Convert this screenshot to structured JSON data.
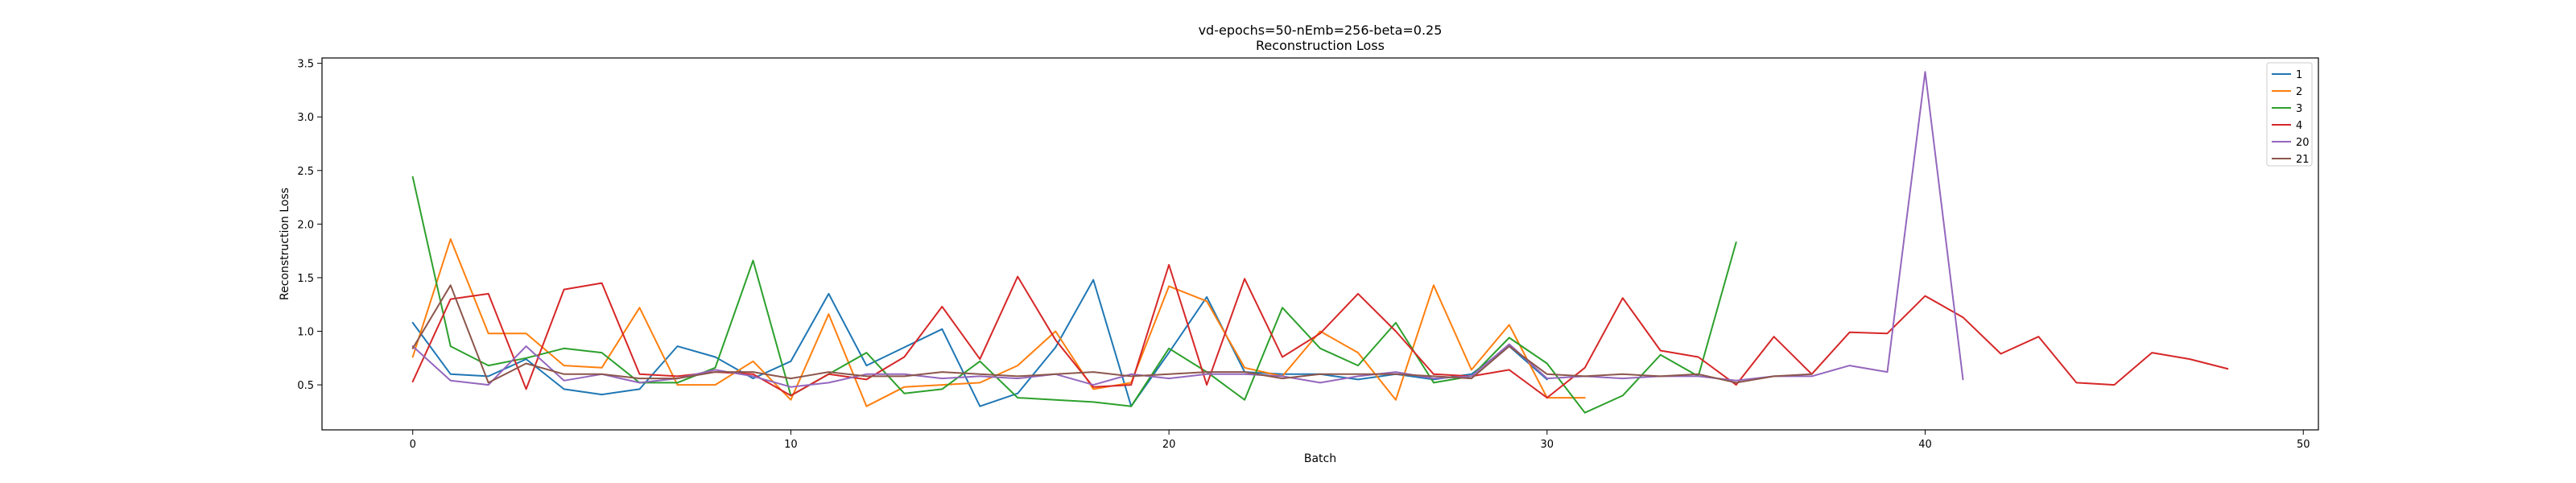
{
  "chart_data": {
    "type": "line",
    "title": "vd-epochs=50-nEmb=256-beta=0.25",
    "subtitle": "Reconstruction Loss",
    "xlabel": "Batch",
    "ylabel": "Reconstruction Loss",
    "xlim": [
      -2.4,
      50.4
    ],
    "ylim": [
      0.08,
      3.55
    ],
    "xticks": [
      0,
      10,
      20,
      30,
      40,
      50
    ],
    "yticks": [
      0.5,
      1.0,
      1.5,
      2.0,
      2.5,
      3.0,
      3.5
    ],
    "ytick_labels": [
      "0.5",
      "1.0",
      "1.5",
      "2.0",
      "2.5",
      "3.0",
      "3.5"
    ],
    "grid": false,
    "legend_position": "top-right",
    "series": [
      {
        "name": "1",
        "color": "#1f77b4",
        "x": [
          0,
          1,
          2,
          3,
          4,
          5,
          6,
          7,
          8,
          9,
          10,
          11,
          12,
          13,
          14,
          15,
          16,
          17,
          18,
          19,
          20,
          21,
          22,
          23,
          24,
          25,
          26,
          27,
          28,
          29,
          30
        ],
        "values": [
          1.08,
          0.6,
          0.58,
          0.74,
          0.46,
          0.41,
          0.46,
          0.86,
          0.76,
          0.56,
          0.72,
          1.35,
          0.68,
          0.85,
          1.02,
          0.3,
          0.42,
          0.85,
          1.48,
          0.3,
          0.8,
          1.32,
          0.62,
          0.6,
          0.6,
          0.55,
          0.6,
          0.55,
          0.6,
          0.86,
          0.55
        ]
      },
      {
        "name": "2",
        "color": "#ff7f0e",
        "x": [
          0,
          1,
          2,
          3,
          4,
          5,
          6,
          7,
          8,
          9,
          10,
          11,
          12,
          13,
          14,
          15,
          16,
          17,
          18,
          19,
          20,
          21,
          22,
          23,
          24,
          25,
          26,
          27,
          28,
          29,
          30,
          31
        ],
        "values": [
          0.76,
          1.86,
          0.98,
          0.98,
          0.68,
          0.66,
          1.22,
          0.5,
          0.5,
          0.72,
          0.36,
          1.16,
          0.3,
          0.48,
          0.5,
          0.52,
          0.68,
          1.0,
          0.46,
          0.52,
          1.42,
          1.28,
          0.66,
          0.58,
          1.0,
          0.8,
          0.36,
          1.43,
          0.64,
          1.06,
          0.38,
          0.38
        ]
      },
      {
        "name": "3",
        "color": "#2ca02c",
        "x": [
          0,
          1,
          2,
          3,
          4,
          5,
          6,
          7,
          8,
          9,
          10,
          11,
          12,
          13,
          14,
          15,
          16,
          17,
          18,
          19,
          20,
          21,
          22,
          23,
          24,
          25,
          26,
          27,
          28,
          29,
          30,
          31,
          32,
          33,
          34,
          35
        ],
        "values": [
          2.44,
          0.86,
          0.68,
          0.75,
          0.84,
          0.8,
          0.52,
          0.52,
          0.66,
          1.66,
          0.4,
          0.6,
          0.8,
          0.42,
          0.46,
          0.72,
          0.38,
          0.36,
          0.34,
          0.3,
          0.84,
          0.62,
          0.36,
          1.22,
          0.84,
          0.68,
          1.08,
          0.52,
          0.58,
          0.94,
          0.7,
          0.24,
          0.4,
          0.78,
          0.58,
          1.83
        ]
      },
      {
        "name": "4",
        "color": "#d62728",
        "x": [
          0,
          1,
          2,
          3,
          4,
          5,
          6,
          7,
          8,
          9,
          10,
          11,
          12,
          13,
          14,
          15,
          16,
          17,
          18,
          19,
          20,
          21,
          22,
          23,
          24,
          25,
          26,
          27,
          28,
          29,
          30,
          31,
          32,
          33,
          34,
          35,
          36,
          37,
          38,
          39,
          40,
          41,
          42,
          43,
          44,
          45,
          46,
          47,
          48
        ],
        "values": [
          0.53,
          1.3,
          1.35,
          0.46,
          1.39,
          1.45,
          0.6,
          0.58,
          0.62,
          0.6,
          0.4,
          0.6,
          0.55,
          0.76,
          1.23,
          0.74,
          1.51,
          0.92,
          0.48,
          0.5,
          1.62,
          0.5,
          1.49,
          0.76,
          0.98,
          1.35,
          1.0,
          0.6,
          0.58,
          0.64,
          0.38,
          0.66,
          1.31,
          0.82,
          0.76,
          0.5,
          0.95,
          0.6,
          0.99,
          0.98,
          1.33,
          1.13,
          0.79,
          0.95,
          0.52,
          0.5,
          0.8,
          0.74,
          0.65
        ]
      },
      {
        "name": "20",
        "color": "#9467bd",
        "x": [
          0,
          1,
          2,
          3,
          4,
          5,
          6,
          7,
          8,
          9,
          10,
          11,
          12,
          13,
          14,
          15,
          16,
          17,
          18,
          19,
          20,
          21,
          22,
          23,
          24,
          25,
          26,
          27,
          28,
          29,
          30,
          31,
          32,
          33,
          34,
          35,
          36,
          37,
          38,
          39,
          40,
          41
        ],
        "values": [
          0.86,
          0.54,
          0.5,
          0.86,
          0.54,
          0.6,
          0.52,
          0.56,
          0.64,
          0.58,
          0.48,
          0.52,
          0.6,
          0.6,
          0.56,
          0.58,
          0.56,
          0.6,
          0.5,
          0.6,
          0.56,
          0.6,
          0.6,
          0.58,
          0.52,
          0.58,
          0.62,
          0.56,
          0.58,
          0.88,
          0.56,
          0.58,
          0.56,
          0.58,
          0.58,
          0.54,
          0.58,
          0.58,
          0.68,
          0.62,
          3.42,
          0.55
        ]
      },
      {
        "name": "21",
        "color": "#8c564b",
        "x": [
          0,
          1,
          2,
          3,
          4,
          5,
          6,
          7,
          8,
          9,
          10,
          11,
          12,
          13,
          14,
          15,
          16,
          17,
          18,
          19,
          20,
          21,
          22,
          23,
          24,
          25,
          26,
          27,
          28,
          29,
          30,
          31,
          32,
          33,
          34,
          35,
          36,
          37
        ],
        "values": [
          0.84,
          1.43,
          0.52,
          0.7,
          0.6,
          0.6,
          0.56,
          0.56,
          0.62,
          0.62,
          0.56,
          0.62,
          0.58,
          0.58,
          0.62,
          0.6,
          0.58,
          0.6,
          0.62,
          0.58,
          0.6,
          0.62,
          0.62,
          0.56,
          0.6,
          0.6,
          0.6,
          0.58,
          0.56,
          0.86,
          0.6,
          0.58,
          0.6,
          0.58,
          0.6,
          0.52,
          0.58,
          0.6
        ]
      }
    ]
  }
}
